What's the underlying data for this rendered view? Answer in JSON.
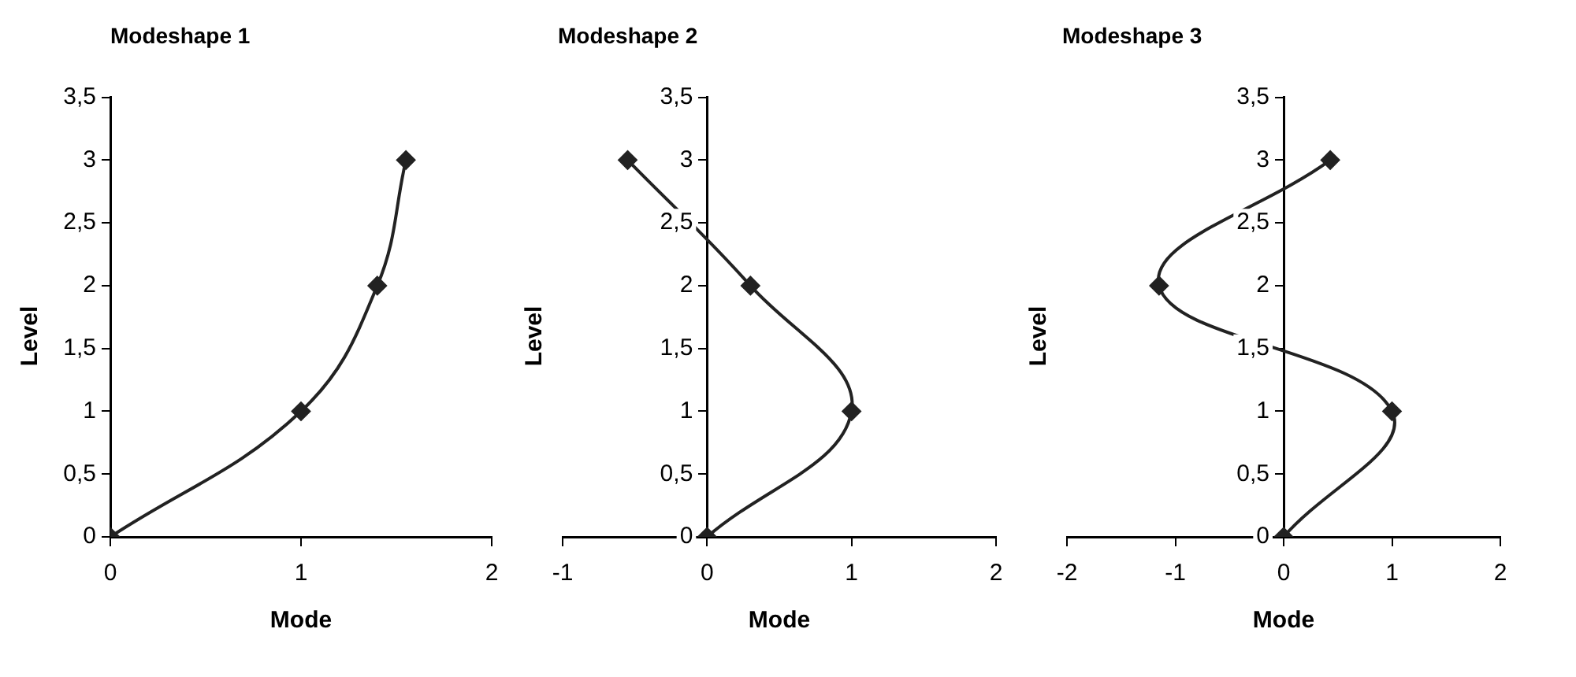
{
  "chart_data": [
    {
      "type": "line",
      "title": "Modeshape 1",
      "xlabel": "Mode",
      "ylabel": "Level",
      "x": [
        0,
        1,
        1.4,
        1.55
      ],
      "series": [
        {
          "color": "#222222",
          "values": [
            0,
            1,
            2,
            3
          ]
        }
      ],
      "xlim": [
        0,
        2
      ],
      "xticks": [
        0,
        1,
        2
      ],
      "ylim": [
        0,
        3.5
      ],
      "yticks": [
        0,
        {
          "value": 0.5,
          "label": "0,5"
        },
        1,
        {
          "value": 1.5,
          "label": "1,5"
        },
        2,
        {
          "value": 2.5,
          "label": "2,5"
        },
        3,
        {
          "value": 3.5,
          "label": "3,5"
        }
      ],
      "grid": false,
      "legend": false,
      "marker": "diamond",
      "line_style": "solid"
    },
    {
      "type": "line",
      "title": "Modeshape 2",
      "xlabel": "Mode",
      "ylabel": "Level",
      "x": [
        0,
        1,
        0.3,
        -0.55
      ],
      "series": [
        {
          "color": "#222222",
          "values": [
            0,
            1,
            2,
            3
          ]
        }
      ],
      "xlim": [
        -1,
        2
      ],
      "xticks": [
        -1,
        0,
        1,
        2
      ],
      "ylim": [
        0,
        3.5
      ],
      "yticks": [
        0,
        {
          "value": 0.5,
          "label": "0,5"
        },
        1,
        {
          "value": 1.5,
          "label": "1,5"
        },
        2,
        {
          "value": 2.5,
          "label": "2,5"
        },
        3,
        {
          "value": 3.5,
          "label": "3,5"
        }
      ],
      "grid": false,
      "legend": false,
      "marker": "diamond",
      "line_style": "solid"
    },
    {
      "type": "line",
      "title": "Modeshape 3",
      "xlabel": "Mode",
      "ylabel": "Level",
      "x": [
        0,
        1,
        -1.15,
        0.43
      ],
      "series": [
        {
          "color": "#222222",
          "values": [
            0,
            1,
            2,
            3
          ]
        }
      ],
      "xlim": [
        -2,
        2
      ],
      "xticks": [
        -2,
        -1,
        0,
        1,
        2
      ],
      "ylim": [
        0,
        3.5
      ],
      "yticks": [
        0,
        {
          "value": 0.5,
          "label": "0,5"
        },
        1,
        {
          "value": 1.5,
          "label": "1,5"
        },
        2,
        {
          "value": 2.5,
          "label": "2,5"
        },
        3,
        {
          "value": 3.5,
          "label": "3,5"
        }
      ],
      "grid": false,
      "legend": false,
      "marker": "diamond",
      "line_style": "solid"
    }
  ]
}
